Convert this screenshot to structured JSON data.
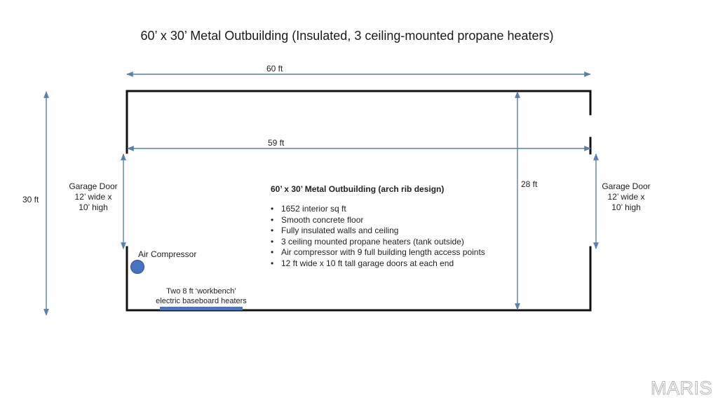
{
  "title": "60’ x 30’ Metal Outbuilding (Insulated, 3 ceiling-mounted propane heaters)",
  "dimensions": {
    "overall_length": "60 ft",
    "interior_length": "59 ft",
    "overall_width": "30 ft",
    "interior_width": "28 ft"
  },
  "garage_door_left": {
    "line1": "Garage Door",
    "line2": "12’ wide x",
    "line3": "10’ high"
  },
  "garage_door_right": {
    "line1": "Garage Door",
    "line2": "12’ wide x",
    "line3": "10’ high"
  },
  "air_compressor_label": "Air Compressor",
  "heaters_label": {
    "line1": "Two 8 ft ‘workbench’",
    "line2": "electric baseboard heaters"
  },
  "notes": {
    "heading": "60’ x 30’ Metal Outbuilding (arch rib design)",
    "items": [
      "1652 interior sq ft",
      "Smooth concrete floor",
      "Fully insulated walls and ceiling",
      "3 ceiling mounted propane heaters (tank outside)",
      "Air compressor with 9 full building length access points",
      "12 ft wide x 10 ft tall garage doors at each end"
    ]
  },
  "watermark": "MARIS",
  "colors": {
    "arrow": "#5a7fb0",
    "wall": "#111111",
    "compressor": "#4a72c4",
    "heater": "#4e74b8"
  }
}
